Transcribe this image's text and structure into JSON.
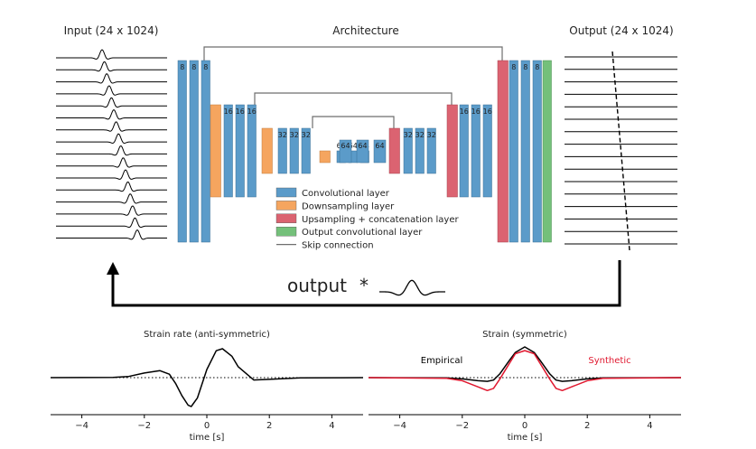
{
  "titles": {
    "input": "Input (24 x 1024)",
    "architecture": "Architecture",
    "output": "Output (24 x 1024)"
  },
  "network": {
    "encoder": [
      {
        "type": "conv",
        "channels": [
          "8",
          "8",
          "8"
        ]
      },
      {
        "type": "down"
      },
      {
        "type": "conv",
        "channels": [
          "16",
          "16",
          "16"
        ]
      },
      {
        "type": "down"
      },
      {
        "type": "conv",
        "channels": [
          "32",
          "32",
          "32"
        ]
      },
      {
        "type": "down"
      },
      {
        "type": "conv",
        "channels": [
          "64",
          "64",
          "64"
        ]
      }
    ],
    "decoder": [
      {
        "type": "up"
      },
      {
        "type": "conv",
        "channels": [
          "32",
          "32",
          "32"
        ]
      },
      {
        "type": "up"
      },
      {
        "type": "conv",
        "channels": [
          "16",
          "16",
          "16"
        ]
      },
      {
        "type": "up"
      },
      {
        "type": "conv",
        "channels": [
          "8",
          "8",
          "8"
        ]
      },
      {
        "type": "output"
      }
    ]
  },
  "legend": [
    {
      "key": "conv",
      "label": "Convolutional layer",
      "color": "#5b9bc9"
    },
    {
      "key": "down",
      "label": "Downsampling layer",
      "color": "#f5a55f"
    },
    {
      "key": "up",
      "label": "Upsampling + concatenation layer",
      "color": "#db6371"
    },
    {
      "key": "output",
      "label": "Output convolutional layer",
      "color": "#74c07a"
    },
    {
      "key": "skip",
      "label": "Skip connection",
      "color": "#6e6e6e"
    }
  ],
  "feedback": {
    "label": "output",
    "operator": "*"
  },
  "chart_data": [
    {
      "type": "line",
      "title": "Strain rate (anti-symmetric)",
      "xlabel": "time [s]",
      "xlim": [
        -5,
        5
      ],
      "xticks": [
        "−4",
        "−2",
        "0",
        "2",
        "4"
      ],
      "series": [
        {
          "color": "#000000",
          "x": [
            -5,
            -3,
            -2.5,
            -2,
            -1.5,
            -1.2,
            -1.0,
            -0.8,
            -0.6,
            -0.5,
            -0.3,
            0,
            0.3,
            0.5,
            0.8,
            1.0,
            1.5,
            2,
            3,
            5
          ],
          "y": [
            0,
            0.005,
            0.04,
            0.16,
            0.24,
            0.12,
            -0.2,
            -0.62,
            -0.95,
            -1.0,
            -0.7,
            0.28,
            0.93,
            1.0,
            0.74,
            0.38,
            -0.08,
            -0.06,
            -0.01,
            0
          ]
        }
      ],
      "reference_line": {
        "y": 0,
        "style": "dotted"
      }
    },
    {
      "type": "line",
      "title": "Strain (symmetric)",
      "xlabel": "time [s]",
      "xlim": [
        -5,
        5
      ],
      "xticks": [
        "−4",
        "−2",
        "0",
        "2",
        "4"
      ],
      "series": [
        {
          "name": "Empirical",
          "color": "#000000",
          "x": [
            -5,
            -2.5,
            -2,
            -1.5,
            -1.2,
            -1.0,
            -0.8,
            -0.5,
            -0.3,
            0,
            0.3,
            0.5,
            0.8,
            1.0,
            1.2,
            1.5,
            2,
            2.5,
            5
          ],
          "y": [
            0,
            -0.01,
            -0.04,
            -0.1,
            -0.12,
            -0.08,
            0.12,
            0.55,
            0.82,
            1.0,
            0.82,
            0.55,
            0.12,
            -0.08,
            -0.12,
            -0.1,
            -0.04,
            -0.01,
            0
          ]
        },
        {
          "name": "Synthetic",
          "color": "#e0182f",
          "x": [
            -5,
            -2.5,
            -2,
            -1.5,
            -1.2,
            -1.0,
            -0.8,
            -0.5,
            -0.3,
            0,
            0.3,
            0.5,
            0.8,
            1.0,
            1.2,
            1.5,
            2,
            2.5,
            5
          ],
          "y": [
            0,
            -0.02,
            -0.1,
            -0.3,
            -0.42,
            -0.35,
            -0.05,
            0.45,
            0.78,
            0.88,
            0.78,
            0.45,
            -0.05,
            -0.35,
            -0.42,
            -0.3,
            -0.1,
            -0.02,
            0
          ]
        }
      ],
      "reference_line": {
        "y": 0,
        "style": "dotted"
      }
    }
  ]
}
